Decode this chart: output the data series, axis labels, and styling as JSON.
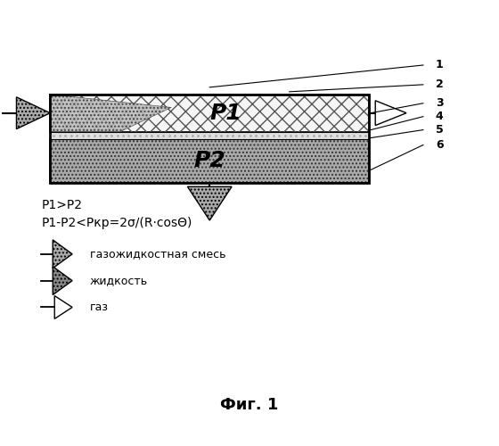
{
  "title": "Фиг. 1",
  "bg_color": "#ffffff",
  "fig_width": 5.6,
  "fig_height": 5.0,
  "dpi": 100,
  "label1": "P1",
  "label2": "P2",
  "numbers": [
    "1",
    "2",
    "3",
    "4",
    "5",
    "6"
  ],
  "eq1": "P1>P2",
  "eq2": "P1-P2<Pкр=2σ/(R·cosΘ)",
  "legend_items": [
    "газожидкостная смесь",
    "жидкость",
    "газ"
  ]
}
